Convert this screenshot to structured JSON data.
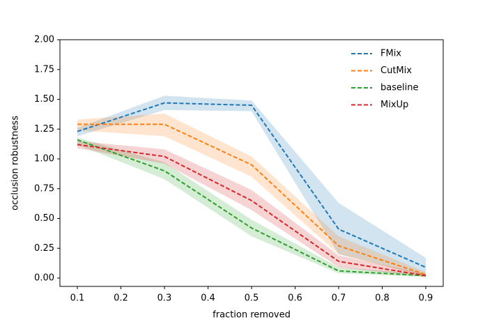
{
  "chart_data": {
    "type": "line",
    "xlabel": "fraction removed",
    "ylabel": "occlusion robustness",
    "x": [
      0.1,
      0.3,
      0.5,
      0.7,
      0.9
    ],
    "series": [
      {
        "name": "FMix",
        "color": "#1f77b4",
        "values": [
          1.23,
          1.47,
          1.45,
          0.41,
          0.09
        ],
        "lower": [
          1.19,
          1.41,
          1.4,
          0.2,
          0.02
        ],
        "upper": [
          1.26,
          1.53,
          1.49,
          0.63,
          0.17
        ]
      },
      {
        "name": "CutMix",
        "color": "#ff7f0e",
        "values": [
          1.29,
          1.29,
          0.95,
          0.27,
          0.03
        ],
        "lower": [
          1.24,
          1.19,
          0.85,
          0.2,
          0.01
        ],
        "upper": [
          1.33,
          1.38,
          1.02,
          0.35,
          0.05
        ]
      },
      {
        "name": "baseline",
        "color": "#2ca02c",
        "values": [
          1.16,
          0.9,
          0.42,
          0.06,
          0.02
        ],
        "lower": [
          1.12,
          0.83,
          0.35,
          0.04,
          0.01
        ],
        "upper": [
          1.18,
          0.97,
          0.49,
          0.09,
          0.035
        ]
      },
      {
        "name": "MixUp",
        "color": "#d62728",
        "values": [
          1.12,
          1.02,
          0.65,
          0.14,
          0.02
        ],
        "lower": [
          1.09,
          0.96,
          0.57,
          0.09,
          0.01
        ],
        "upper": [
          1.15,
          1.08,
          0.74,
          0.19,
          0.035
        ]
      }
    ],
    "xlim": [
      0.06,
      0.94
    ],
    "ylim": [
      -0.07,
      2.0
    ],
    "xticks": [
      0.1,
      0.2,
      0.3,
      0.4,
      0.5,
      0.6,
      0.7,
      0.8,
      0.9
    ],
    "yticks": [
      {
        "value": 0,
        "label": "0.00"
      },
      0.25,
      {
        "value": 0.5,
        "label": "0.50"
      },
      0.75,
      {
        "value": 1,
        "label": "1.00"
      },
      1.25,
      {
        "value": 1.5,
        "label": "1.50"
      },
      1.75,
      {
        "value": 2,
        "label": "2.00"
      }
    ],
    "legend": "upper right",
    "line_style": "dashed",
    "band_opacity": 0.2
  }
}
